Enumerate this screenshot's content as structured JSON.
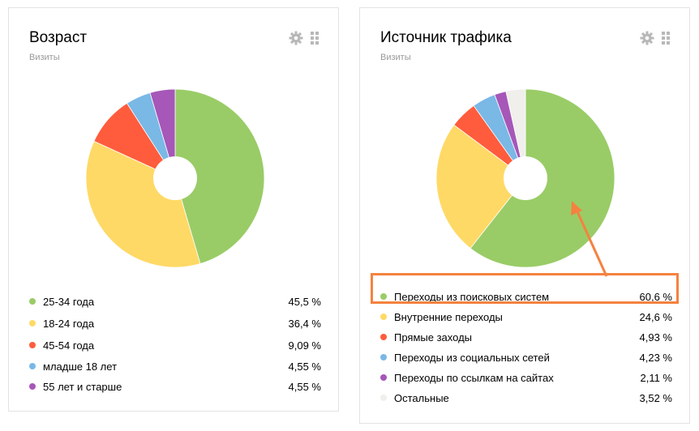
{
  "widgets": [
    {
      "title": "Возраст",
      "subtitle": "Визиты",
      "items": [
        {
          "label": "25-34 года",
          "value": "45,5 %",
          "color": "#99cc66"
        },
        {
          "label": "18-24 года",
          "value": "36,4 %",
          "color": "#ffd966"
        },
        {
          "label": "45-54 года",
          "value": "9,09 %",
          "color": "#ff5c3d"
        },
        {
          "label": "младше 18 лет",
          "value": "4,55 %",
          "color": "#7ab8e6"
        },
        {
          "label": "55 лет и старше",
          "value": "4,55 %",
          "color": "#a657b8"
        }
      ]
    },
    {
      "title": "Источник трафика",
      "subtitle": "Визиты",
      "items": [
        {
          "label": "Переходы из поисковых систем",
          "value": "60,6 %",
          "color": "#99cc66"
        },
        {
          "label": "Внутренние переходы",
          "value": "24,6 %",
          "color": "#ffd966"
        },
        {
          "label": "Прямые заходы",
          "value": "4,93 %",
          "color": "#ff5c3d"
        },
        {
          "label": "Переходы из социальных сетей",
          "value": "4,23 %",
          "color": "#7ab8e6"
        },
        {
          "label": "Переходы по ссылкам на сайтах",
          "value": "2,11 %",
          "color": "#a657b8"
        },
        {
          "label": "Остальные",
          "value": "3,52 %",
          "color": "#f0efeb"
        }
      ]
    }
  ],
  "icons": {
    "settings": "gear-icon",
    "drag": "grid-dots-icon"
  },
  "annotation": {
    "color": "#f5823f",
    "highlighted_item": "Переходы из поисковых систем"
  },
  "chart_data": [
    {
      "type": "pie",
      "title": "Возраст",
      "subtitle": "Визиты",
      "categories": [
        "25-34 года",
        "18-24 года",
        "45-54 года",
        "младше 18 лет",
        "55 лет и старше"
      ],
      "values": [
        45.5,
        36.4,
        9.09,
        4.55,
        4.55
      ],
      "colors": [
        "#99cc66",
        "#ffd966",
        "#ff5c3d",
        "#7ab8e6",
        "#a657b8"
      ],
      "donut": true,
      "legend_position": "bottom"
    },
    {
      "type": "pie",
      "title": "Источник трафика",
      "subtitle": "Визиты",
      "categories": [
        "Переходы из поисковых систем",
        "Внутренние переходы",
        "Прямые заходы",
        "Переходы из социальных сетей",
        "Переходы по ссылкам на сайтах",
        "Остальные"
      ],
      "values": [
        60.6,
        24.6,
        4.93,
        4.23,
        2.11,
        3.52
      ],
      "colors": [
        "#99cc66",
        "#ffd966",
        "#ff5c3d",
        "#7ab8e6",
        "#a657b8",
        "#f0efeb"
      ],
      "donut": true,
      "legend_position": "bottom",
      "annotations": [
        "Orange box highlighting 'Переходы из поисковых систем' with arrow pointing to green slice"
      ]
    }
  ]
}
